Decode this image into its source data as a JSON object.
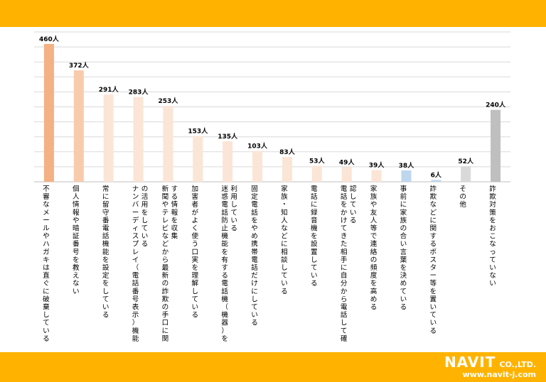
{
  "chart_data": {
    "type": "bar",
    "title": "",
    "xlabel": "",
    "ylabel": "",
    "ylim": [
      0,
      500
    ],
    "grid": true,
    "value_suffix": "人",
    "categories": [
      "不審なメールやハガキは直ぐに破棄している",
      "個人情報や暗証番号を教えない",
      "常に留守番電話機能を設定をしている",
      "ナンバーディスプレイ（電話番号表示）機能の活用をしている",
      "新聞やテレビなどから最新の詐欺の手口に関する情報を収集",
      "加害者がよく使う口実を理解している",
      "迷惑電話防止機能を有する電話機（機器）を利用している",
      "固定電話をやめ携帯電話だけにしている",
      "家族・知人などに相談している",
      "電話に録音機を設置している",
      "電話をかけてきた相手に自分から電話して確認している",
      "家族や友人等で連絡の頻度を高める",
      "事前に家族の合い言葉を決めている",
      "詐欺などに関するポスター等を置いている",
      "その他",
      "詐欺対策をおこなっていない"
    ],
    "values": [
      460,
      372,
      291,
      283,
      253,
      153,
      135,
      103,
      83,
      53,
      49,
      39,
      38,
      6,
      52,
      240
    ],
    "value_labels": [
      "460人",
      "372人",
      "291人",
      "283人",
      "253人",
      "153人",
      "135人",
      "103人",
      "83人",
      "53人",
      "49人",
      "39人",
      "38人",
      "6人",
      "52人",
      "240人"
    ],
    "colors": [
      "#f4b183",
      "#f8cbad",
      "#fbe5d6",
      "#fbe5d6",
      "#fbe5d6",
      "#fbe5d6",
      "#fbe5d6",
      "#fbe5d6",
      "#fbe5d6",
      "#fbe5d6",
      "#fbe5d6",
      "#fbe5d6",
      "#bdd7ee",
      "#bdd7ee",
      "#d9d9d9",
      "#bfbfbf"
    ],
    "grid_color": "#d9d9d9"
  },
  "brand": {
    "name": "NAVIT",
    "suffix": "CO.,LTD.",
    "url": "www.navit-j.com"
  }
}
